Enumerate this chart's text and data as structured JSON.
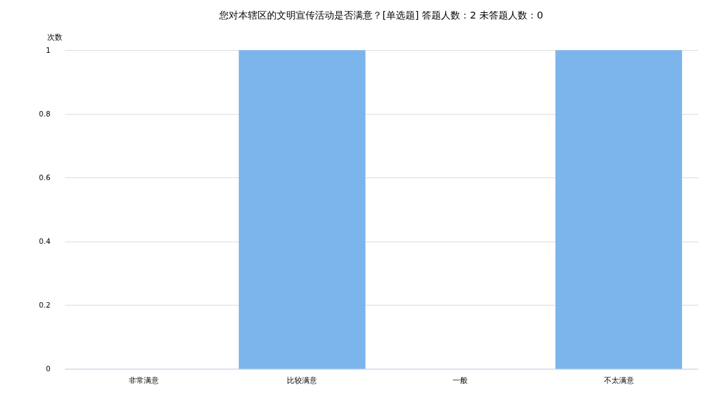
{
  "chart_data": {
    "type": "bar",
    "title": "您对本辖区的文明宣传活动是否满意？[单选题]  答题人数：2  未答题人数：0",
    "ylabel": "次数",
    "categories": [
      "非常满意",
      "比较满意",
      "一般",
      "不太满意"
    ],
    "values": [
      0,
      1,
      0,
      1
    ],
    "color": "#7cb5ec",
    "ylim": [
      0,
      1
    ],
    "yticks": [
      0,
      0.2,
      0.4,
      0.6,
      0.8,
      1
    ],
    "grid": "y"
  }
}
